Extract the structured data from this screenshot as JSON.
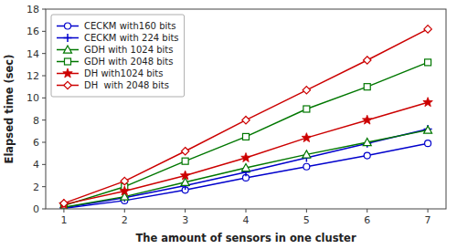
{
  "chart_data": {
    "type": "line",
    "x": [
      1,
      2,
      3,
      4,
      5,
      6,
      7
    ],
    "series": [
      {
        "name": "CECKM with160 bits",
        "color": "#0000cc",
        "marker": "circle",
        "values": [
          0.05,
          0.75,
          1.7,
          2.8,
          3.8,
          4.8,
          5.9
        ]
      },
      {
        "name": "CECKM with 224 bits",
        "color": "#0000cc",
        "marker": "plus",
        "values": [
          0.1,
          1.0,
          2.1,
          3.3,
          4.6,
          5.9,
          7.2
        ]
      },
      {
        "name": "GDH with 1024 bits",
        "color": "#007700",
        "marker": "triangle",
        "values": [
          0.15,
          1.1,
          2.4,
          3.7,
          4.9,
          6.0,
          7.1
        ]
      },
      {
        "name": "GDH with 2048 bits",
        "color": "#007700",
        "marker": "square",
        "values": [
          0.3,
          2.0,
          4.3,
          6.5,
          9.0,
          11.0,
          13.2
        ]
      },
      {
        "name": "DH with1024 bits",
        "color": "#cc0000",
        "marker": "star",
        "values": [
          0.4,
          1.6,
          3.0,
          4.6,
          6.4,
          8.0,
          9.6
        ]
      },
      {
        "name": "DH  with 2048 bits",
        "color": "#cc0000",
        "marker": "diamond",
        "values": [
          0.5,
          2.5,
          5.2,
          8.0,
          10.7,
          13.4,
          16.2
        ]
      }
    ],
    "xlabel": "The amount of sensors in one cluster",
    "ylabel": "Elapsed time (sec)",
    "xlim": [
      0.7,
      7.3
    ],
    "ylim": [
      0,
      18
    ],
    "xticks": [
      1,
      2,
      3,
      4,
      5,
      6,
      7
    ],
    "yticks": [
      0,
      2,
      4,
      6,
      8,
      10,
      12,
      14,
      16,
      18
    ],
    "grid": false,
    "legend": "upper left"
  }
}
